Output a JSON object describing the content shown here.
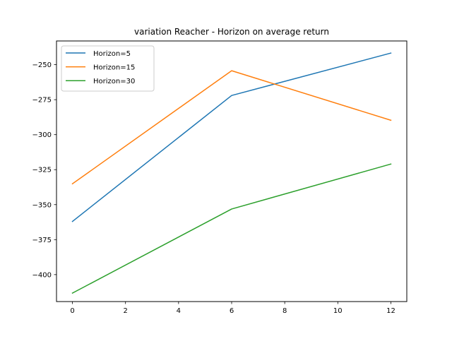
{
  "chart_data": {
    "type": "line",
    "title": "variation Reacher - Horizon on average return",
    "xlabel": "",
    "ylabel": "",
    "x": [
      0,
      6,
      12
    ],
    "xlim": [
      -0.6,
      12.6
    ],
    "ylim": [
      -419.25,
      -233.05
    ],
    "xticks": [
      0,
      2,
      4,
      6,
      8,
      10,
      12
    ],
    "yticks": [
      -400,
      -375,
      -350,
      -325,
      -300,
      -275,
      -250
    ],
    "grid": false,
    "legend_position": "upper-left",
    "series": [
      {
        "name": "Horizon=5",
        "color": "#1f77b4",
        "values": [
          -362.0,
          -272.0,
          -241.7
        ]
      },
      {
        "name": "Horizon=15",
        "color": "#ff7f0e",
        "values": [
          -335.1,
          -254.3,
          -289.7
        ]
      },
      {
        "name": "Horizon=30",
        "color": "#2ca02c",
        "values": [
          -413.2,
          -353.1,
          -321.0
        ]
      }
    ]
  }
}
